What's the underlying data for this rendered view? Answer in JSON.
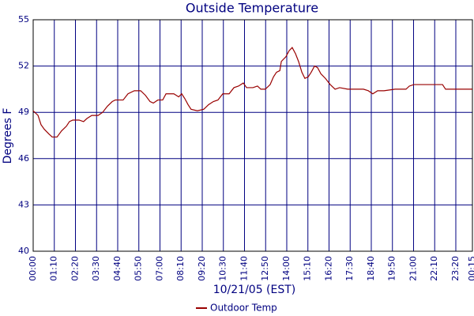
{
  "chart_data": {
    "type": "line",
    "title": "Outside Temperature",
    "x_label": "10/21/05 (EST)",
    "y_label": "Degrees F",
    "xlim": [
      0,
      1455
    ],
    "ylim": [
      40,
      55
    ],
    "yticks": [
      40,
      43,
      46,
      49,
      52,
      55
    ],
    "xticks": [
      {
        "value": 0,
        "label": "00:00"
      },
      {
        "value": 70,
        "label": "01:10"
      },
      {
        "value": 140,
        "label": "02:20"
      },
      {
        "value": 210,
        "label": "03:30"
      },
      {
        "value": 280,
        "label": "04:40"
      },
      {
        "value": 350,
        "label": "05:50"
      },
      {
        "value": 420,
        "label": "07:00"
      },
      {
        "value": 490,
        "label": "08:10"
      },
      {
        "value": 560,
        "label": "09:20"
      },
      {
        "value": 630,
        "label": "10:30"
      },
      {
        "value": 700,
        "label": "11:40"
      },
      {
        "value": 770,
        "label": "12:50"
      },
      {
        "value": 840,
        "label": "14:00"
      },
      {
        "value": 910,
        "label": "15:10"
      },
      {
        "value": 980,
        "label": "16:20"
      },
      {
        "value": 1050,
        "label": "17:30"
      },
      {
        "value": 1120,
        "label": "18:40"
      },
      {
        "value": 1190,
        "label": "19:50"
      },
      {
        "value": 1260,
        "label": "21:00"
      },
      {
        "value": 1330,
        "label": "22:10"
      },
      {
        "value": 1400,
        "label": "23:20"
      },
      {
        "value": 1455,
        "label": "00:15"
      }
    ],
    "grid": true,
    "legend": "bottom",
    "series": [
      {
        "name": "Outdoor Temp",
        "color": "#990000",
        "x": [
          0,
          16,
          26,
          37,
          52,
          63,
          79,
          94,
          110,
          120,
          131,
          152,
          167,
          178,
          194,
          215,
          230,
          246,
          262,
          272,
          298,
          314,
          335,
          356,
          372,
          387,
          398,
          413,
          429,
          440,
          466,
          482,
          492,
          502,
          513,
          523,
          544,
          565,
          581,
          597,
          612,
          628,
          649,
          665,
          680,
          696,
          707,
          728,
          743,
          754,
          769,
          785,
          796,
          806,
          817,
          822,
          837,
          848,
          858,
          869,
          879,
          890,
          900,
          911,
          921,
          932,
          942,
          953,
          968,
          984,
          1000,
          1015,
          1042,
          1094,
          1110,
          1125,
          1141,
          1162,
          1199,
          1235,
          1246,
          1261,
          1356,
          1366,
          1455
        ],
        "values": [
          49.1,
          48.8,
          48.2,
          47.9,
          47.6,
          47.4,
          47.4,
          47.8,
          48.1,
          48.4,
          48.5,
          48.5,
          48.4,
          48.6,
          48.8,
          48.8,
          49.0,
          49.4,
          49.7,
          49.8,
          49.8,
          50.2,
          50.4,
          50.4,
          50.1,
          49.7,
          49.6,
          49.8,
          49.8,
          50.2,
          50.2,
          50.0,
          50.2,
          49.9,
          49.5,
          49.2,
          49.1,
          49.2,
          49.5,
          49.7,
          49.8,
          50.2,
          50.2,
          50.6,
          50.7,
          50.9,
          50.6,
          50.6,
          50.7,
          50.5,
          50.5,
          50.8,
          51.3,
          51.6,
          51.7,
          52.3,
          52.6,
          53.0,
          53.2,
          52.8,
          52.3,
          51.6,
          51.2,
          51.3,
          51.6,
          52.0,
          51.9,
          51.5,
          51.2,
          50.8,
          50.5,
          50.6,
          50.5,
          50.5,
          50.4,
          50.2,
          50.4,
          50.4,
          50.5,
          50.5,
          50.7,
          50.8,
          50.8,
          50.5,
          50.5
        ]
      }
    ]
  }
}
